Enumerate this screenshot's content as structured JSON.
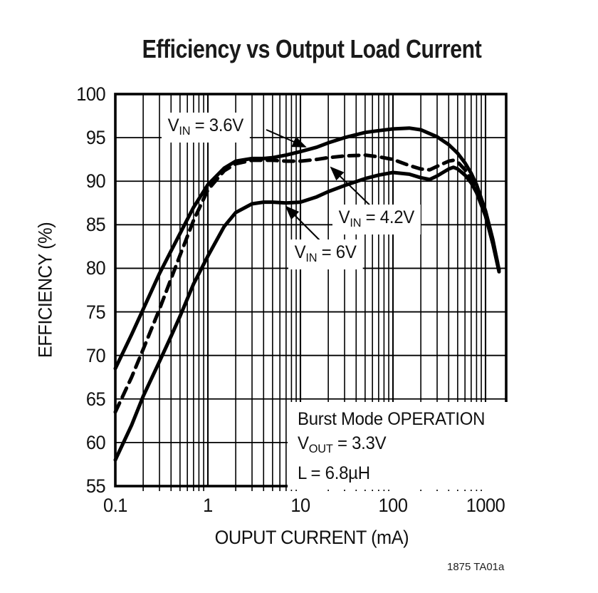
{
  "title": "Efficiency vs Output Load Current",
  "footnote": "1875 TA01a",
  "curve_labels": {
    "vin36": {
      "base": "V",
      "sub": "IN",
      "rest": " = 3.6V"
    },
    "vin42": {
      "base": "V",
      "sub": "IN",
      "rest": " = 4.2V"
    },
    "vin6": {
      "base": "V",
      "sub": "IN",
      "rest": " = 6V"
    }
  },
  "annotation": {
    "line1": "Burst Mode OPERATION",
    "line2": {
      "base": "V",
      "sub": "OUT",
      "rest": " = 3.3V"
    },
    "line3": "L = 6.8µH"
  },
  "chart_data": {
    "type": "line",
    "title": "Efficiency vs Output Load Current",
    "xlabel": "OUPUT CURRENT (mA)",
    "ylabel": "EFFICIENCY (%)",
    "x_scale": "log",
    "xlim": [
      0.1,
      1670
    ],
    "ylim": [
      55,
      100
    ],
    "x_tick_values": [
      0.1,
      1,
      10,
      100,
      1000
    ],
    "x_tick_labels": [
      "0.1",
      "1",
      "10",
      "100",
      "1000"
    ],
    "y_tick_values": [
      100,
      95,
      90,
      85,
      80,
      75,
      70,
      65,
      60,
      55
    ],
    "y_tick_labels": [
      "100",
      "95",
      "90",
      "85",
      "80",
      "75",
      "70",
      "65",
      "60",
      "55"
    ],
    "grid": "x-log-minor-and-major, y-major",
    "legend_position": "inline-arrow-labels",
    "line_color": "#000000",
    "series": [
      {
        "name": "VIN = 3.6V",
        "style": "solid",
        "points": [
          [
            0.1,
            68.5
          ],
          [
            0.15,
            72.4
          ],
          [
            0.2,
            75.3
          ],
          [
            0.3,
            79.4
          ],
          [
            0.4,
            82.0
          ],
          [
            0.5,
            84.0
          ],
          [
            0.7,
            87.0
          ],
          [
            1,
            89.6
          ],
          [
            1.5,
            91.5
          ],
          [
            2,
            92.3
          ],
          [
            3,
            92.6
          ],
          [
            4,
            92.6
          ],
          [
            5,
            92.7
          ],
          [
            7,
            93.0
          ],
          [
            10,
            93.4
          ],
          [
            15,
            93.9
          ],
          [
            20,
            94.4
          ],
          [
            30,
            95.0
          ],
          [
            50,
            95.6
          ],
          [
            70,
            95.8
          ],
          [
            100,
            96.0
          ],
          [
            150,
            96.1
          ],
          [
            200,
            95.9
          ],
          [
            300,
            95.1
          ],
          [
            400,
            94.2
          ],
          [
            500,
            93.2
          ],
          [
            600,
            92.1
          ],
          [
            700,
            90.9
          ],
          [
            800,
            89.6
          ],
          [
            1000,
            86.6
          ],
          [
            1200,
            83.3
          ],
          [
            1400,
            79.8
          ]
        ]
      },
      {
        "name": "VIN = 4.2V",
        "style": "dashed",
        "points": [
          [
            0.1,
            63.5
          ],
          [
            0.15,
            67.5
          ],
          [
            0.2,
            70.7
          ],
          [
            0.3,
            75.3
          ],
          [
            0.4,
            78.8
          ],
          [
            0.5,
            81.5
          ],
          [
            0.7,
            85.5
          ],
          [
            1,
            89.0
          ],
          [
            1.5,
            91.2
          ],
          [
            2,
            92.0
          ],
          [
            3,
            92.4
          ],
          [
            5,
            92.4
          ],
          [
            7,
            92.3
          ],
          [
            10,
            92.3
          ],
          [
            15,
            92.5
          ],
          [
            20,
            92.7
          ],
          [
            30,
            92.9
          ],
          [
            50,
            93.0
          ],
          [
            70,
            92.8
          ],
          [
            100,
            92.5
          ],
          [
            150,
            91.8
          ],
          [
            200,
            91.4
          ],
          [
            250,
            91.3
          ],
          [
            300,
            91.7
          ],
          [
            400,
            92.3
          ],
          [
            450,
            92.4
          ],
          [
            500,
            92.2
          ],
          [
            600,
            91.3
          ],
          [
            700,
            90.2
          ],
          [
            800,
            89.0
          ],
          [
            1000,
            86.2
          ],
          [
            1200,
            83.0
          ],
          [
            1400,
            79.9
          ]
        ]
      },
      {
        "name": "VIN = 6V",
        "style": "solid",
        "points": [
          [
            0.1,
            58.0
          ],
          [
            0.15,
            62.0
          ],
          [
            0.2,
            65.3
          ],
          [
            0.3,
            69.3
          ],
          [
            0.4,
            72.2
          ],
          [
            0.5,
            74.5
          ],
          [
            0.7,
            78.2
          ],
          [
            1,
            81.4
          ],
          [
            1.5,
            84.8
          ],
          [
            2,
            86.4
          ],
          [
            3,
            87.4
          ],
          [
            4,
            87.6
          ],
          [
            5,
            87.6
          ],
          [
            7,
            87.5
          ],
          [
            10,
            87.6
          ],
          [
            15,
            88.2
          ],
          [
            20,
            88.8
          ],
          [
            30,
            89.5
          ],
          [
            50,
            90.3
          ],
          [
            70,
            90.7
          ],
          [
            100,
            91.0
          ],
          [
            150,
            90.8
          ],
          [
            200,
            90.4
          ],
          [
            250,
            90.2
          ],
          [
            300,
            90.6
          ],
          [
            400,
            91.4
          ],
          [
            450,
            91.6
          ],
          [
            500,
            91.4
          ],
          [
            600,
            90.7
          ],
          [
            700,
            89.8
          ],
          [
            800,
            88.7
          ],
          [
            1000,
            86.0
          ],
          [
            1200,
            82.8
          ],
          [
            1400,
            79.6
          ]
        ]
      }
    ]
  }
}
